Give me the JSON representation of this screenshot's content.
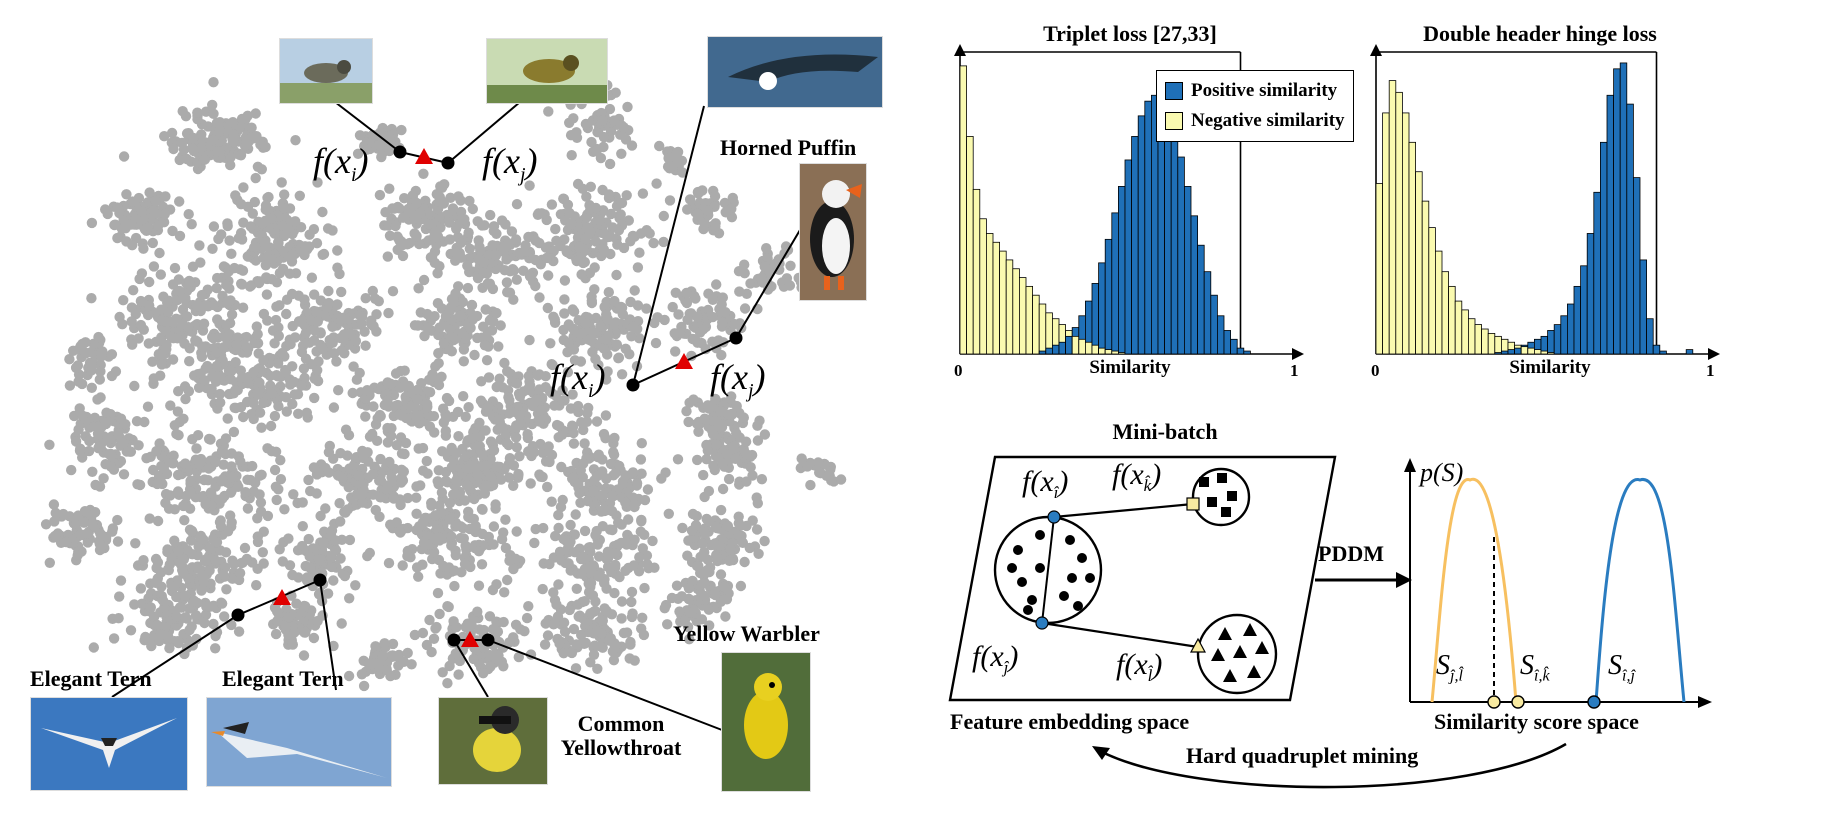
{
  "colors": {
    "points": "#ababab",
    "triangle": "#e00000",
    "positive": "#1f70b8",
    "negative": "#fafab0",
    "orange_curve": "#f7c060",
    "blue_curve": "#2a7cc0"
  },
  "scatter_labels": {
    "fxi_top": "f(x",
    "i_sub": "i",
    "j_sub": "j",
    "close_paren": ")"
  },
  "bird_names": {
    "horned_puffin": "Horned Puffin",
    "elegant_tern_1": "Elegant Tern",
    "elegant_tern_2": "Elegant Tern",
    "yellow_warbler": "Yellow Warbler",
    "common_yellowthroat_1": "Common",
    "common_yellowthroat_2": "Yellowthroat"
  },
  "chart_data": [
    {
      "type": "bar",
      "title": "Triplet loss [27,33]",
      "xlabel": "Similarity",
      "xlim": [
        0,
        1
      ],
      "x_ticks": [
        "0",
        "1"
      ],
      "series": [
        {
          "name": "Positive similarity",
          "values": [
            0,
            0,
            0,
            0,
            0,
            0,
            0,
            0,
            0,
            0,
            0,
            0,
            0.01,
            0.02,
            0.03,
            0.04,
            0.06,
            0.09,
            0.13,
            0.18,
            0.24,
            0.31,
            0.39,
            0.48,
            0.57,
            0.66,
            0.74,
            0.81,
            0.86,
            0.88,
            0.87,
            0.83,
            0.76,
            0.67,
            0.57,
            0.47,
            0.37,
            0.28,
            0.2,
            0.13,
            0.08,
            0.05,
            0.02,
            0.01,
            0,
            0,
            0,
            0,
            0,
            0
          ]
        },
        {
          "name": "Negative similarity",
          "values": [
            0.98,
            0.74,
            0.56,
            0.46,
            0.41,
            0.38,
            0.35,
            0.32,
            0.29,
            0.26,
            0.23,
            0.2,
            0.17,
            0.14,
            0.12,
            0.1,
            0.08,
            0.06,
            0.05,
            0.04,
            0.03,
            0.02,
            0.015,
            0.01,
            0.005,
            0,
            0,
            0,
            0,
            0,
            0,
            0,
            0,
            0,
            0,
            0,
            0,
            0,
            0,
            0,
            0,
            0,
            0,
            0,
            0,
            0,
            0,
            0,
            0,
            0
          ]
        }
      ]
    },
    {
      "type": "bar",
      "title": "Double header hinge loss",
      "xlabel": "Similarity",
      "xlim": [
        0,
        1
      ],
      "x_ticks": [
        "0",
        "1"
      ],
      "series": [
        {
          "name": "Positive similarity",
          "values": [
            0,
            0,
            0,
            0,
            0,
            0,
            0,
            0,
            0,
            0,
            0,
            0,
            0,
            0,
            0,
            0,
            0,
            0,
            0.005,
            0.01,
            0.015,
            0.02,
            0.03,
            0.04,
            0.05,
            0.06,
            0.08,
            0.1,
            0.13,
            0.17,
            0.23,
            0.3,
            0.41,
            0.55,
            0.72,
            0.88,
            0.97,
            0.99,
            0.85,
            0.6,
            0.32,
            0.12,
            0.03,
            0.01,
            0,
            0,
            0,
            0.015,
            0,
            0
          ]
        },
        {
          "name": "Negative similarity",
          "values": [
            0.58,
            0.82,
            0.93,
            0.89,
            0.82,
            0.72,
            0.62,
            0.52,
            0.43,
            0.35,
            0.28,
            0.23,
            0.18,
            0.15,
            0.12,
            0.1,
            0.085,
            0.07,
            0.06,
            0.05,
            0.04,
            0.03,
            0.025,
            0.02,
            0.015,
            0.01,
            0.005,
            0,
            0,
            0,
            0,
            0,
            0,
            0,
            0,
            0,
            0,
            0,
            0,
            0,
            0,
            0,
            0,
            0,
            0,
            0,
            0,
            0,
            0,
            0
          ]
        }
      ]
    }
  ],
  "legend": {
    "positive": "Positive similarity",
    "negative": "Negative similarity"
  },
  "diagram": {
    "minibatch_title": "Mini-batch",
    "feature_space_label": "Feature embedding space",
    "similarity_space_label": "Similarity score space",
    "pddm_label": "PDDM",
    "mining_label": "Hard quadruplet mining",
    "p_of_s": "p(S)",
    "f_paren": "f(x",
    "sub_i_hat": "î",
    "sub_j_hat": "ĵ",
    "sub_k_hat": "k̂",
    "sub_l_hat": "l̂",
    "s_label": "S",
    "s_sub_jl": "ĵ,l̂",
    "s_sub_ik": "î,k̂",
    "s_sub_ij": "î,ĵ"
  }
}
